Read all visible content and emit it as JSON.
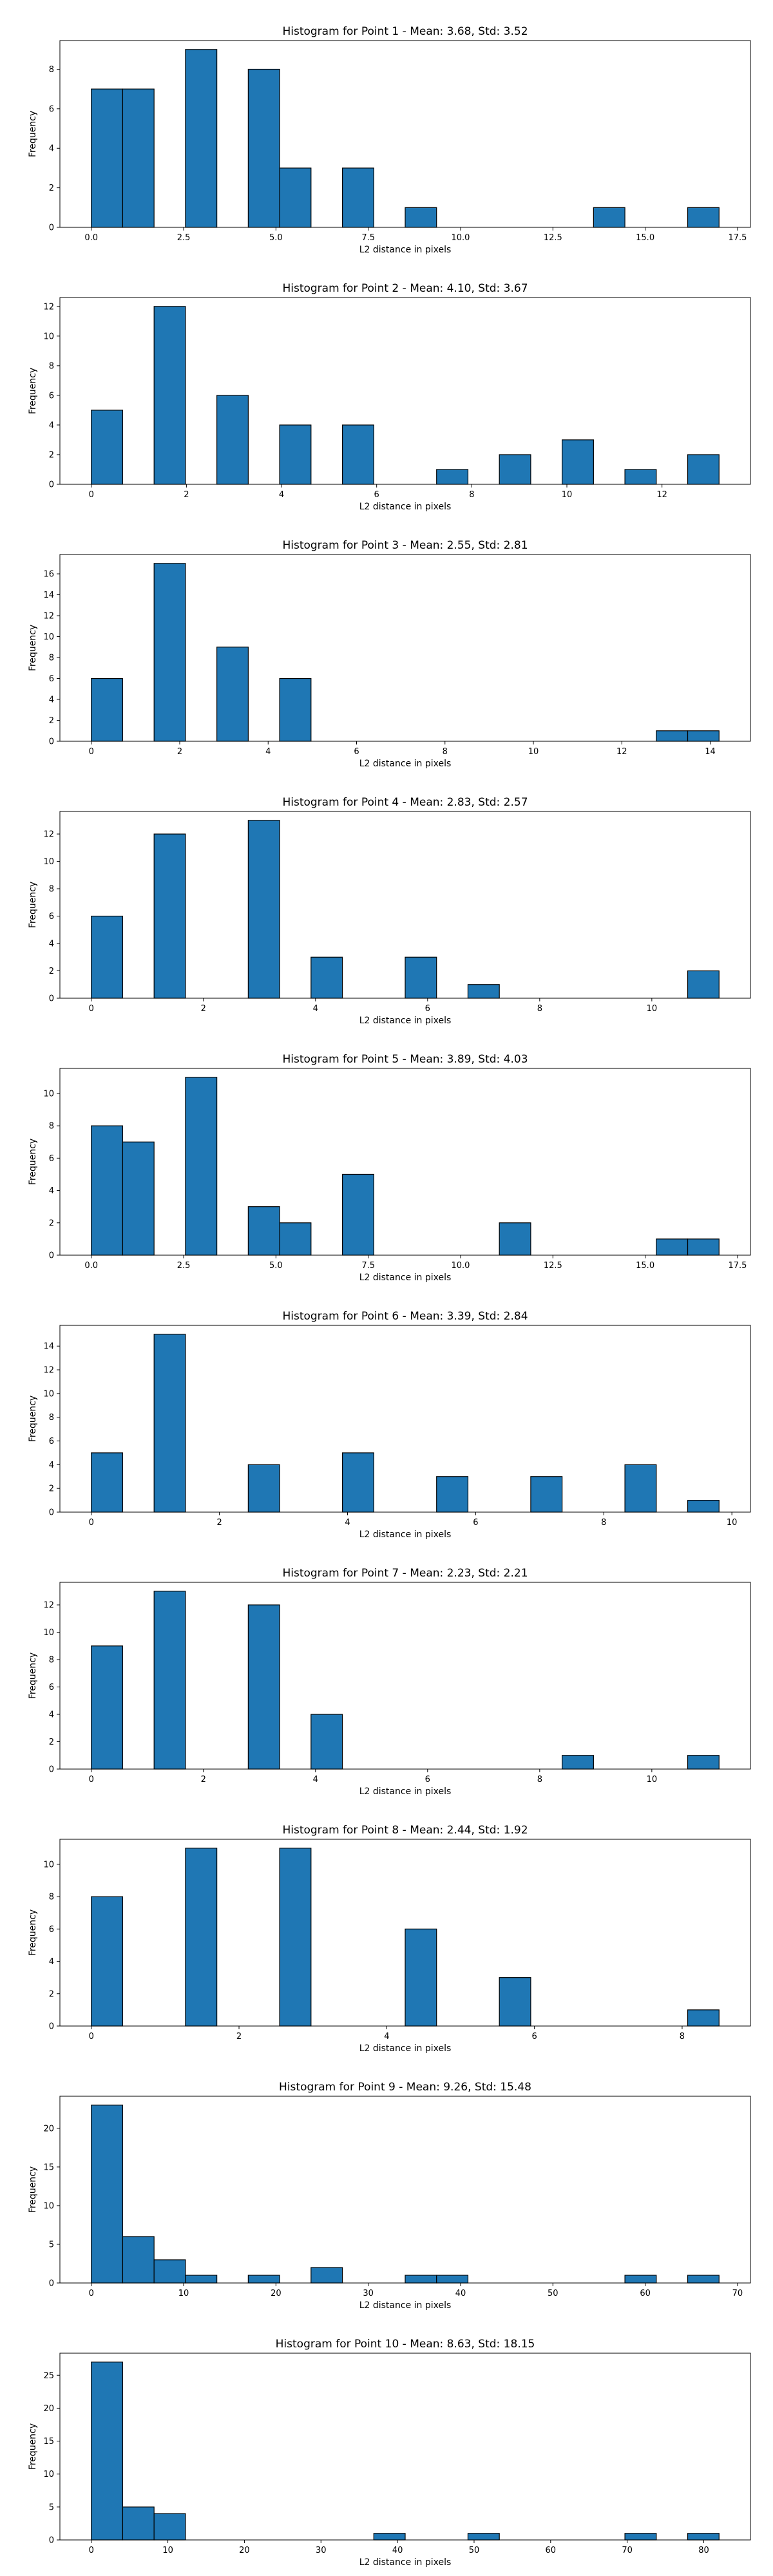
{
  "chart_data": [
    {
      "type": "bar",
      "title": "Histogram for Point 1 - Mean: 3.68, Std: 3.52",
      "xlabel": "L2 distance in pixels",
      "ylabel": "Frequency",
      "xlim": [
        -0.85,
        17.85
      ],
      "ylim": [
        0,
        9.45
      ],
      "xticks": [
        0.0,
        2.5,
        5.0,
        7.5,
        10.0,
        12.5,
        15.0,
        17.5
      ],
      "xtick_labels": [
        "0.0",
        "2.5",
        "5.0",
        "7.5",
        "10.0",
        "12.5",
        "15.0",
        "17.5"
      ],
      "yticks": [
        0,
        2,
        4,
        6,
        8
      ],
      "bin_width": 0.85,
      "x": [
        0.0,
        0.85,
        2.55,
        4.25,
        5.1,
        6.8,
        8.5,
        13.6,
        16.15
      ],
      "values": [
        7,
        7,
        9,
        8,
        3,
        3,
        1,
        1,
        1
      ]
    },
    {
      "type": "bar",
      "title": "Histogram for Point 2 - Mean: 4.10, Std: 3.67",
      "xlabel": "L2 distance in pixels",
      "ylabel": "Frequency",
      "xlim": [
        -0.66,
        13.86
      ],
      "ylim": [
        0,
        12.6
      ],
      "xticks": [
        0,
        2,
        4,
        6,
        8,
        10,
        12
      ],
      "xtick_labels": [
        "0",
        "2",
        "4",
        "6",
        "8",
        "10",
        "12"
      ],
      "yticks": [
        0,
        2,
        4,
        6,
        8,
        10,
        12
      ],
      "bin_width": 0.66,
      "x": [
        0.0,
        1.32,
        2.64,
        3.96,
        5.28,
        7.26,
        8.58,
        9.9,
        11.22,
        12.54
      ],
      "values": [
        5,
        12,
        6,
        4,
        4,
        1,
        2,
        3,
        1,
        2
      ]
    },
    {
      "type": "bar",
      "title": "Histogram for Point 3 - Mean: 2.55, Std: 2.81",
      "xlabel": "L2 distance in pixels",
      "ylabel": "Frequency",
      "xlim": [
        -0.71,
        14.91
      ],
      "ylim": [
        0,
        17.85
      ],
      "xticks": [
        0,
        2,
        4,
        6,
        8,
        10,
        12,
        14
      ],
      "xtick_labels": [
        "0",
        "2",
        "4",
        "6",
        "8",
        "10",
        "12",
        "14"
      ],
      "yticks": [
        0,
        2,
        4,
        6,
        8,
        10,
        12,
        14,
        16
      ],
      "bin_width": 0.71,
      "x": [
        0.0,
        1.42,
        2.84,
        4.26,
        12.78,
        13.49
      ],
      "values": [
        6,
        17,
        9,
        6,
        1,
        1
      ]
    },
    {
      "type": "bar",
      "title": "Histogram for Point 4 - Mean: 2.83, Std: 2.57",
      "xlabel": "L2 distance in pixels",
      "ylabel": "Frequency",
      "xlim": [
        -0.56,
        11.76
      ],
      "ylim": [
        0,
        13.65
      ],
      "xticks": [
        0,
        2,
        4,
        6,
        8,
        10
      ],
      "xtick_labels": [
        "0",
        "2",
        "4",
        "6",
        "8",
        "10"
      ],
      "yticks": [
        0,
        2,
        4,
        6,
        8,
        10,
        12
      ],
      "bin_width": 0.56,
      "x": [
        0.0,
        1.12,
        2.8,
        3.92,
        5.6,
        6.72,
        10.64
      ],
      "values": [
        6,
        12,
        13,
        3,
        3,
        1,
        2
      ]
    },
    {
      "type": "bar",
      "title": "Histogram for Point 5 - Mean: 3.89, Std: 4.03",
      "xlabel": "L2 distance in pixels",
      "ylabel": "Frequency",
      "xlim": [
        -0.85,
        17.85
      ],
      "ylim": [
        0,
        11.55
      ],
      "xticks": [
        0.0,
        2.5,
        5.0,
        7.5,
        10.0,
        12.5,
        15.0,
        17.5
      ],
      "xtick_labels": [
        "0.0",
        "2.5",
        "5.0",
        "7.5",
        "10.0",
        "12.5",
        "15.0",
        "17.5"
      ],
      "yticks": [
        0,
        2,
        4,
        6,
        8,
        10
      ],
      "bin_width": 0.85,
      "x": [
        0.0,
        0.85,
        2.55,
        4.25,
        5.1,
        6.8,
        11.05,
        15.3,
        16.15
      ],
      "values": [
        8,
        7,
        11,
        3,
        2,
        5,
        2,
        1,
        1
      ]
    },
    {
      "type": "bar",
      "title": "Histogram for Point 6 - Mean: 3.39, Std: 2.84",
      "xlabel": "L2 distance in pixels",
      "ylabel": "Frequency",
      "xlim": [
        -0.49,
        10.29
      ],
      "ylim": [
        0,
        15.75
      ],
      "xticks": [
        0,
        2,
        4,
        6,
        8,
        10
      ],
      "xtick_labels": [
        "0",
        "2",
        "4",
        "6",
        "8",
        "10"
      ],
      "yticks": [
        0,
        2,
        4,
        6,
        8,
        10,
        12,
        14
      ],
      "bin_width": 0.49,
      "x": [
        0.0,
        0.98,
        2.45,
        3.92,
        5.39,
        6.86,
        8.33,
        9.31
      ],
      "values": [
        5,
        15,
        4,
        5,
        3,
        3,
        4,
        1
      ]
    },
    {
      "type": "bar",
      "title": "Histogram for Point 7 - Mean: 2.23, Std: 2.21",
      "xlabel": "L2 distance in pixels",
      "ylabel": "Frequency",
      "xlim": [
        -0.56,
        11.76
      ],
      "ylim": [
        0,
        13.65
      ],
      "xticks": [
        0,
        2,
        4,
        6,
        8,
        10
      ],
      "xtick_labels": [
        "0",
        "2",
        "4",
        "6",
        "8",
        "10"
      ],
      "yticks": [
        0,
        2,
        4,
        6,
        8,
        10,
        12
      ],
      "bin_width": 0.56,
      "x": [
        0.0,
        1.12,
        2.8,
        3.92,
        8.4,
        10.64
      ],
      "values": [
        9,
        13,
        12,
        4,
        1,
        1
      ]
    },
    {
      "type": "bar",
      "title": "Histogram for Point 8 - Mean: 2.44, Std: 1.92",
      "xlabel": "L2 distance in pixels",
      "ylabel": "Frequency",
      "xlim": [
        -0.425,
        8.925
      ],
      "ylim": [
        0,
        11.55
      ],
      "xticks": [
        0,
        2,
        4,
        6,
        8
      ],
      "xtick_labels": [
        "0",
        "2",
        "4",
        "6",
        "8"
      ],
      "yticks": [
        0,
        2,
        4,
        6,
        8,
        10
      ],
      "bin_width": 0.425,
      "x": [
        0.0,
        1.275,
        2.55,
        4.25,
        5.525,
        8.075
      ],
      "values": [
        8,
        11,
        11,
        6,
        3,
        1
      ]
    },
    {
      "type": "bar",
      "title": "Histogram for Point 9 - Mean: 9.26, Std: 15.48",
      "xlabel": "L2 distance in pixels",
      "ylabel": "Frequency",
      "xlim": [
        -3.4,
        71.4
      ],
      "ylim": [
        0,
        24.15
      ],
      "xticks": [
        0,
        10,
        20,
        30,
        40,
        50,
        60,
        70
      ],
      "xtick_labels": [
        "0",
        "10",
        "20",
        "30",
        "40",
        "50",
        "60",
        "70"
      ],
      "yticks": [
        0,
        5,
        10,
        15,
        20
      ],
      "bin_width": 3.4,
      "x": [
        0.0,
        3.4,
        6.8,
        10.2,
        17.0,
        23.8,
        34.0,
        37.4,
        57.8,
        64.6
      ],
      "values": [
        23,
        6,
        3,
        1,
        1,
        2,
        1,
        1,
        1,
        1
      ]
    },
    {
      "type": "bar",
      "title": "Histogram for Point 10 - Mean: 8.63, Std: 18.15",
      "xlabel": "L2 distance in pixels",
      "ylabel": "Frequency",
      "xlim": [
        -4.1,
        86.1
      ],
      "ylim": [
        0,
        28.35
      ],
      "xticks": [
        0,
        10,
        20,
        30,
        40,
        50,
        60,
        70,
        80
      ],
      "xtick_labels": [
        "0",
        "10",
        "20",
        "30",
        "40",
        "50",
        "60",
        "70",
        "80"
      ],
      "yticks": [
        0,
        5,
        10,
        15,
        20,
        25
      ],
      "bin_width": 4.1,
      "x": [
        0.0,
        4.1,
        8.2,
        36.9,
        49.2,
        69.7,
        77.9
      ],
      "values": [
        27,
        5,
        4,
        1,
        1,
        1,
        1
      ]
    }
  ]
}
